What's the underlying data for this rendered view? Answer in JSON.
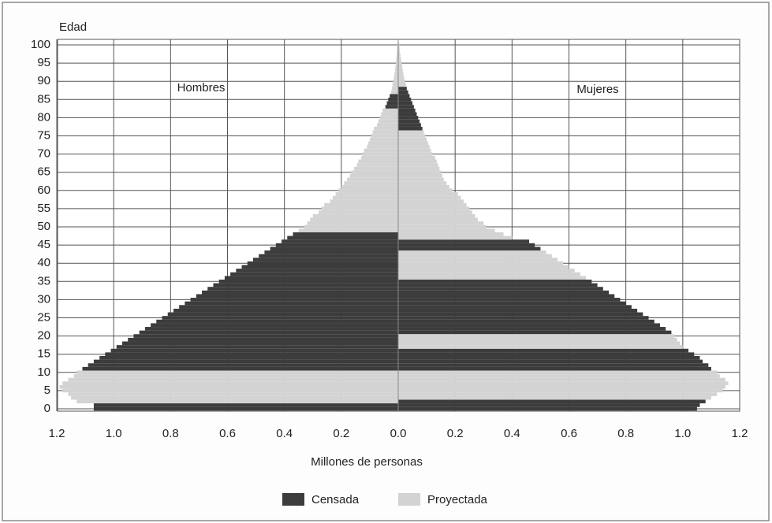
{
  "chart_data": {
    "type": "pyramid",
    "y_label": "Edad",
    "x_label": "Millones de personas",
    "annotations": [
      "Hombres",
      "Mujeres"
    ],
    "ylim": [
      0,
      100
    ],
    "yticks": [
      0,
      5,
      10,
      15,
      20,
      25,
      30,
      35,
      40,
      45,
      50,
      55,
      60,
      65,
      70,
      75,
      80,
      85,
      90,
      95,
      100
    ],
    "xlim": [
      0,
      1.2
    ],
    "xticks": [
      {
        "value": 0,
        "label": "0.0"
      },
      0.2,
      0.4,
      0.6,
      0.8,
      {
        "value": 1,
        "label": "1.0"
      },
      1.2
    ],
    "grid": true,
    "legend": "bottom",
    "series": [
      {
        "name": "Censada",
        "color": "#3c3c3c",
        "hombres": [
          1.07,
          1.07,
          null,
          null,
          null,
          null,
          null,
          null,
          null,
          null,
          null,
          1.11,
          1.09,
          1.07,
          1.05,
          1.03,
          1.01,
          0.99,
          0.97,
          0.95,
          0.93,
          0.91,
          0.89,
          0.87,
          0.85,
          0.83,
          0.81,
          0.79,
          0.77,
          0.75,
          0.73,
          0.71,
          0.69,
          0.67,
          0.65,
          0.63,
          0.61,
          0.59,
          0.57,
          0.55,
          0.53,
          0.51,
          0.49,
          0.47,
          0.45,
          0.43,
          0.41,
          0.39,
          0.37,
          null,
          null,
          null,
          null,
          null,
          null,
          null,
          null,
          null,
          null,
          null,
          null,
          null,
          null,
          null,
          null,
          null,
          null,
          null,
          null,
          null,
          null,
          null,
          null,
          null,
          null,
          null,
          null,
          null,
          null,
          null,
          null,
          null,
          null,
          0.045,
          0.04,
          0.035,
          0.03,
          null,
          null,
          null,
          null,
          null,
          null,
          null,
          null,
          null,
          null,
          null,
          null,
          null,
          null
        ],
        "mujeres": [
          1.05,
          1.06,
          1.08,
          null,
          null,
          null,
          null,
          null,
          null,
          null,
          null,
          1.1,
          1.09,
          1.07,
          1.06,
          1.04,
          1.02,
          null,
          null,
          null,
          null,
          0.96,
          0.94,
          0.92,
          0.9,
          0.88,
          0.86,
          0.84,
          0.82,
          0.8,
          0.78,
          0.76,
          0.74,
          0.72,
          0.7,
          0.68,
          null,
          null,
          null,
          null,
          null,
          null,
          null,
          null,
          0.5,
          0.48,
          0.46,
          null,
          null,
          null,
          null,
          null,
          null,
          null,
          null,
          null,
          null,
          null,
          null,
          null,
          null,
          null,
          null,
          null,
          null,
          null,
          null,
          null,
          null,
          null,
          null,
          null,
          null,
          null,
          null,
          null,
          null,
          0.085,
          0.08,
          0.075,
          0.07,
          0.065,
          0.06,
          0.055,
          0.05,
          0.045,
          0.04,
          0.035,
          0.03,
          null,
          null,
          null,
          null,
          null,
          null,
          null,
          null,
          null,
          null,
          null,
          null
        ]
      },
      {
        "name": "Proyectada",
        "color": "#d3d3d3",
        "hombres": [
          null,
          null,
          1.13,
          1.15,
          1.16,
          1.18,
          1.19,
          1.18,
          1.16,
          1.14,
          1.13,
          null,
          null,
          null,
          null,
          null,
          null,
          null,
          null,
          null,
          null,
          null,
          null,
          null,
          null,
          null,
          null,
          null,
          null,
          null,
          null,
          null,
          null,
          null,
          null,
          null,
          null,
          null,
          null,
          null,
          null,
          null,
          null,
          null,
          null,
          null,
          null,
          null,
          null,
          0.35,
          0.33,
          0.32,
          0.31,
          0.3,
          0.28,
          0.27,
          0.26,
          0.24,
          0.23,
          0.22,
          0.21,
          0.2,
          0.19,
          0.18,
          0.17,
          0.165,
          0.155,
          0.145,
          0.14,
          0.13,
          0.125,
          0.12,
          0.11,
          0.105,
          0.1,
          0.095,
          0.09,
          0.085,
          0.075,
          0.07,
          0.065,
          0.06,
          0.055,
          null,
          null,
          null,
          null,
          0.025,
          0.022,
          0.02,
          0.018,
          0.015,
          0.013,
          0.011,
          0.01,
          0.008,
          0.007,
          0.006,
          0.005,
          0.004,
          0.003
        ],
        "mujeres": [
          null,
          null,
          null,
          1.1,
          1.12,
          1.14,
          1.15,
          1.16,
          1.15,
          1.13,
          1.12,
          null,
          null,
          null,
          null,
          null,
          null,
          1.0,
          0.99,
          0.98,
          0.97,
          null,
          null,
          null,
          null,
          null,
          null,
          null,
          null,
          null,
          null,
          null,
          null,
          null,
          null,
          null,
          0.66,
          0.64,
          0.62,
          0.6,
          0.58,
          0.56,
          0.54,
          0.52,
          null,
          null,
          null,
          0.4,
          0.37,
          0.34,
          0.31,
          0.3,
          0.28,
          0.27,
          0.26,
          0.25,
          0.24,
          0.23,
          0.22,
          0.21,
          0.19,
          0.18,
          0.17,
          0.16,
          0.155,
          0.15,
          0.145,
          0.14,
          0.135,
          0.13,
          0.12,
          0.115,
          0.11,
          0.105,
          0.1,
          0.095,
          0.09,
          null,
          null,
          null,
          null,
          null,
          null,
          null,
          null,
          null,
          null,
          null,
          null,
          0.027,
          0.024,
          0.021,
          0.018,
          0.016,
          0.014,
          0.012,
          0.01,
          0.008,
          0.006,
          0.005,
          0.004
        ]
      }
    ]
  }
}
